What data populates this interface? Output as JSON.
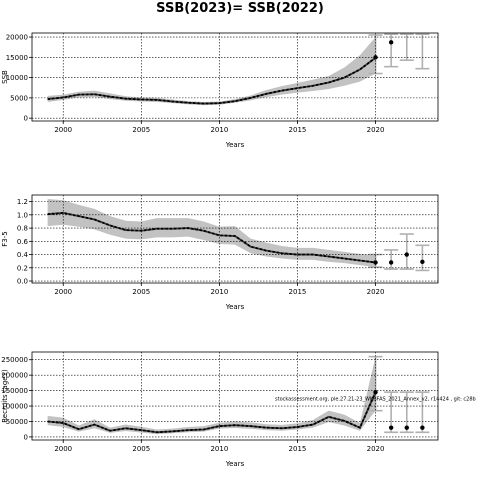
{
  "figure_title": "SSB(2023)= SSB(2022)",
  "annotation": "stockassessment.org, ple.27.21-23_WKBFAS_2021_Annex_v2, r14424 , git: c28b",
  "colors": {
    "band": "#c2c2c2",
    "line": "#000000",
    "marker": "#000000",
    "errorbar": "#b0b0b0",
    "grid": "#000000"
  },
  "chart_data": [
    {
      "type": "line",
      "xlabel": "Years",
      "ylabel": "SSB",
      "grid": true,
      "xlim": [
        1998,
        2024
      ],
      "ylim": [
        -700,
        21000
      ],
      "xticks": [
        2000,
        2005,
        2010,
        2015,
        2020
      ],
      "yticks": [
        0,
        5000,
        10000,
        15000,
        20000
      ],
      "x": [
        1999,
        2000,
        2001,
        2002,
        2003,
        2004,
        2005,
        2006,
        2007,
        2008,
        2009,
        2010,
        2011,
        2012,
        2013,
        2014,
        2015,
        2016,
        2017,
        2018,
        2019,
        2020
      ],
      "estimate": [
        4700,
        5100,
        5800,
        5900,
        5300,
        4800,
        4600,
        4500,
        4100,
        3800,
        3600,
        3700,
        4200,
        5000,
        6000,
        6800,
        7400,
        8000,
        8800,
        10000,
        12000,
        14900
      ],
      "lower": [
        4000,
        4500,
        5100,
        5200,
        4700,
        4300,
        4100,
        4000,
        3700,
        3400,
        3200,
        3300,
        3800,
        4400,
        5200,
        5800,
        6300,
        6700,
        7200,
        8000,
        9000,
        11000
      ],
      "upper": [
        5500,
        5800,
        6500,
        6800,
        6100,
        5400,
        5100,
        5000,
        4600,
        4200,
        4000,
        4100,
        4700,
        5600,
        6900,
        7900,
        8700,
        9500,
        10400,
        12500,
        15500,
        20000
      ],
      "forecast": [
        {
          "x": 2020,
          "value": 15000,
          "low": 11000,
          "high": 20500
        },
        {
          "x": 2021,
          "value": 18700,
          "low": 12700,
          "high": 20700
        },
        {
          "x": 2022,
          "value": null,
          "low": 14300,
          "high": 20700
        },
        {
          "x": 2023,
          "value": null,
          "low": 12200,
          "high": 20700
        }
      ]
    },
    {
      "type": "line",
      "xlabel": "Years",
      "ylabel": "F3-5",
      "grid": true,
      "xlim": [
        1998,
        2024
      ],
      "ylim": [
        -0.03,
        1.3
      ],
      "xticks": [
        2000,
        2005,
        2010,
        2015,
        2020
      ],
      "yticks": [
        0.0,
        0.2,
        0.4,
        0.6,
        0.8,
        1.0,
        1.2
      ],
      "ytick_labels": [
        "0.0",
        "0.2",
        "0.4",
        "0.6",
        "0.8",
        "1.0",
        "1.2"
      ],
      "x": [
        1999,
        2000,
        2001,
        2002,
        2003,
        2004,
        2005,
        2006,
        2007,
        2008,
        2009,
        2010,
        2011,
        2012,
        2013,
        2014,
        2015,
        2016,
        2017,
        2018,
        2019,
        2020
      ],
      "estimate": [
        1.01,
        1.03,
        0.98,
        0.93,
        0.84,
        0.77,
        0.76,
        0.79,
        0.79,
        0.8,
        0.76,
        0.69,
        0.68,
        0.52,
        0.46,
        0.42,
        0.4,
        0.4,
        0.37,
        0.34,
        0.31,
        0.28
      ],
      "lower": [
        0.83,
        0.85,
        0.82,
        0.78,
        0.7,
        0.64,
        0.63,
        0.66,
        0.66,
        0.67,
        0.62,
        0.56,
        0.55,
        0.42,
        0.37,
        0.34,
        0.32,
        0.32,
        0.29,
        0.27,
        0.24,
        0.21
      ],
      "upper": [
        1.24,
        1.22,
        1.15,
        1.09,
        0.98,
        0.91,
        0.9,
        0.95,
        0.95,
        0.95,
        0.9,
        0.82,
        0.83,
        0.64,
        0.58,
        0.53,
        0.5,
        0.5,
        0.47,
        0.44,
        0.41,
        0.39
      ],
      "forecast": [
        {
          "x": 2020,
          "value": 0.28,
          "low": 0.21,
          "high": 0.4
        },
        {
          "x": 2021,
          "value": 0.28,
          "low": 0.18,
          "high": 0.47
        },
        {
          "x": 2022,
          "value": 0.4,
          "low": 0.18,
          "high": 0.71
        },
        {
          "x": 2023,
          "value": 0.29,
          "low": 0.16,
          "high": 0.54
        }
      ]
    },
    {
      "type": "line",
      "xlabel": "Years",
      "ylabel": "Recruits (age1)",
      "grid": true,
      "xlim": [
        1998,
        2024
      ],
      "ylim": [
        -10000,
        275000
      ],
      "xticks": [
        2000,
        2005,
        2010,
        2015,
        2020
      ],
      "yticks": [
        0,
        50000,
        100000,
        150000,
        200000,
        250000
      ],
      "x": [
        1999,
        2000,
        2001,
        2002,
        2003,
        2004,
        2005,
        2006,
        2007,
        2008,
        2009,
        2010,
        2011,
        2012,
        2013,
        2014,
        2015,
        2016,
        2017,
        2018,
        2019,
        2020
      ],
      "estimate": [
        50000,
        45000,
        25000,
        40000,
        20000,
        28000,
        22000,
        15000,
        18000,
        22000,
        24000,
        35000,
        38000,
        35000,
        30000,
        28000,
        32000,
        40000,
        65000,
        52000,
        30000,
        145000
      ],
      "lower": [
        38000,
        32000,
        17000,
        28000,
        13000,
        19000,
        14000,
        9000,
        12000,
        15000,
        17000,
        27000,
        29000,
        26000,
        22000,
        20000,
        24000,
        30000,
        48000,
        37000,
        20000,
        85000
      ],
      "upper": [
        68000,
        62000,
        37000,
        57000,
        30000,
        40000,
        33000,
        24000,
        27000,
        32000,
        35000,
        46000,
        50000,
        47000,
        41000,
        39000,
        44000,
        55000,
        85000,
        72000,
        45000,
        260000
      ],
      "forecast": [
        {
          "x": 2020,
          "value": 145000,
          "low": 85000,
          "high": 260000
        },
        {
          "x": 2021,
          "value": 30000,
          "low": 15000,
          "high": 145000
        },
        {
          "x": 2022,
          "value": 30000,
          "low": 15000,
          "high": 145000
        },
        {
          "x": 2023,
          "value": 30000,
          "low": 15000,
          "high": 145000
        }
      ]
    }
  ]
}
